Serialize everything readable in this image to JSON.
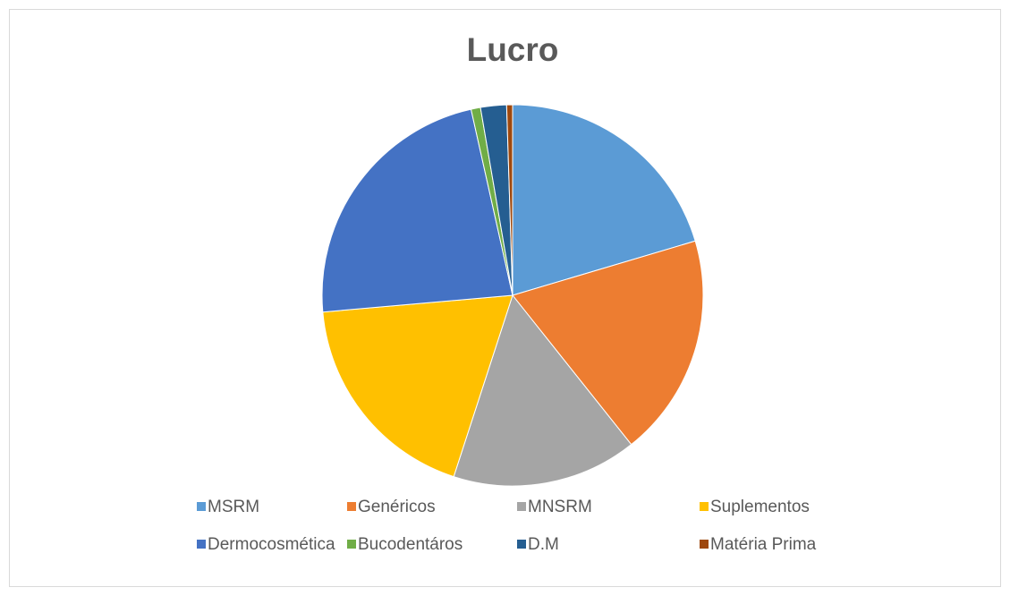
{
  "chart_data": {
    "type": "pie",
    "title": "Lucro",
    "categories": [
      "MSRM",
      "Genéricos",
      "MNSRM",
      "Suplementos",
      "Dermocosmética",
      "Bucodentáros",
      "D.M",
      "Matéria Prima"
    ],
    "values": [
      20.4,
      18.9,
      15.7,
      18.6,
      22.9,
      0.8,
      2.2,
      0.5
    ],
    "colors": [
      "#5b9bd5",
      "#ed7d31",
      "#a5a5a5",
      "#ffc000",
      "#4472c4",
      "#70ad47",
      "#255e91",
      "#9e480e"
    ],
    "legend": "bottom"
  }
}
